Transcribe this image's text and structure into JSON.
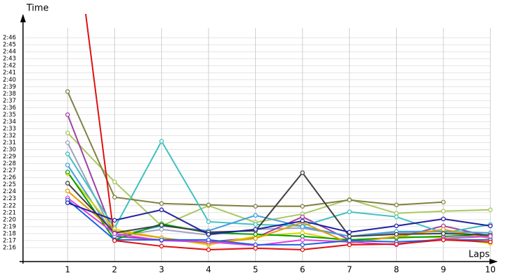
{
  "chart_data": {
    "type": "line",
    "ylabel": "Time",
    "xlabel": "Laps",
    "xlim": [
      0,
      10.1
    ],
    "xticks": [
      1,
      2,
      3,
      4,
      5,
      6,
      7,
      8,
      9,
      10
    ],
    "ylim": [
      134,
      169
    ],
    "yticks": [
      {
        "value": 136,
        "label": "2:16"
      },
      {
        "value": 137,
        "label": "2:17"
      },
      {
        "value": 138,
        "label": "2:18"
      },
      {
        "value": 139,
        "label": "2:19"
      },
      {
        "value": 140,
        "label": "2:20"
      },
      {
        "value": 141,
        "label": "2:21"
      },
      {
        "value": 142,
        "label": "2:22"
      },
      {
        "value": 143,
        "label": "2:23"
      },
      {
        "value": 144,
        "label": "2:24"
      },
      {
        "value": 145,
        "label": "2:25"
      },
      {
        "value": 146,
        "label": "2:26"
      },
      {
        "value": 147,
        "label": "2:27"
      },
      {
        "value": 148,
        "label": "2:28"
      },
      {
        "value": 149,
        "label": "2:29"
      },
      {
        "value": 150,
        "label": "2:30"
      },
      {
        "value": 151,
        "label": "2:31"
      },
      {
        "value": 152,
        "label": "2:32"
      },
      {
        "value": 153,
        "label": "2:33"
      },
      {
        "value": 154,
        "label": "2:34"
      },
      {
        "value": 155,
        "label": "2:35"
      },
      {
        "value": 156,
        "label": "2:36"
      },
      {
        "value": 157,
        "label": "2:37"
      },
      {
        "value": 158,
        "label": "2:38"
      },
      {
        "value": 159,
        "label": "2:39"
      },
      {
        "value": 160,
        "label": "2:40"
      },
      {
        "value": 161,
        "label": "2:41"
      },
      {
        "value": 162,
        "label": "2:42"
      },
      {
        "value": 163,
        "label": "2:43"
      },
      {
        "value": 164,
        "label": "2:44"
      },
      {
        "value": 165,
        "label": "2:45"
      },
      {
        "value": 166,
        "label": "2:46"
      }
    ],
    "grid": true,
    "x": [
      1,
      2,
      3,
      4,
      5,
      6,
      7,
      8,
      9,
      10
    ],
    "series": [
      {
        "color": "#a8c860",
        "values": [
          152.4,
          145.4,
          139.1,
          142.0,
          139.6,
          140.8,
          142.9,
          140.9,
          141.2,
          141.4
        ]
      },
      {
        "color": "#808040",
        "values": [
          158.3,
          143.2,
          142.3,
          142.1,
          141.9,
          141.9,
          142.8,
          142.1,
          142.5,
          null
        ]
      },
      {
        "color": "#a0a0c0",
        "values": [
          151.0,
          137.6,
          138.6,
          137.8,
          138.6,
          138.8,
          137.6,
          138.1,
          138.3,
          137.6
        ]
      },
      {
        "color": "#a040a0",
        "values": [
          155.0,
          137.6,
          137.1,
          136.8,
          137.4,
          140.4,
          137.1,
          137.4,
          139.1,
          137.6
        ]
      },
      {
        "color": "#40c0c0",
        "values": [
          149.4,
          138.8,
          151.2,
          139.7,
          139.3,
          139.1,
          141.1,
          140.4,
          138.1,
          139.3
        ]
      },
      {
        "color": "#40a0e0",
        "values": [
          147.8,
          137.6,
          139.1,
          138.4,
          140.6,
          139.0,
          137.6,
          138.3,
          138.3,
          138.1
        ]
      },
      {
        "color": "#e0d000",
        "values": [
          146.6,
          138.6,
          137.4,
          136.4,
          137.6,
          138.1,
          136.8,
          137.6,
          137.4,
          136.6
        ]
      },
      {
        "color": "#00a000",
        "values": [
          146.8,
          137.1,
          139.4,
          138.1,
          137.9,
          137.6,
          137.1,
          137.4,
          137.6,
          137.8
        ]
      },
      {
        "color": "#e0a000",
        "values": [
          144.1,
          138.3,
          137.4,
          136.6,
          137.3,
          139.6,
          136.6,
          137.6,
          138.6,
          137.3
        ]
      },
      {
        "color": "#404040",
        "values": [
          145.2,
          138.1,
          139.2,
          138.2,
          138.4,
          146.7,
          137.6,
          137.9,
          138.0,
          137.8
        ]
      },
      {
        "color": "#e040e0",
        "values": [
          143.1,
          138.0,
          137.0,
          136.8,
          136.3,
          137.1,
          136.8,
          136.4,
          137.3,
          137.6
        ]
      },
      {
        "color": "#2060e0",
        "values": [
          142.8,
          137.1,
          137.1,
          137.1,
          136.4,
          136.4,
          137.0,
          136.8,
          137.1,
          137.1
        ]
      },
      {
        "color": "#2020a0",
        "values": [
          142.4,
          139.9,
          141.4,
          137.9,
          138.6,
          139.8,
          138.2,
          139.1,
          140.1,
          139.1
        ]
      },
      {
        "color": "#e01010",
        "values": [
          189.7,
          137.0,
          136.2,
          135.7,
          135.9,
          135.7,
          136.4,
          136.5,
          137.1,
          136.8
        ]
      }
    ]
  }
}
